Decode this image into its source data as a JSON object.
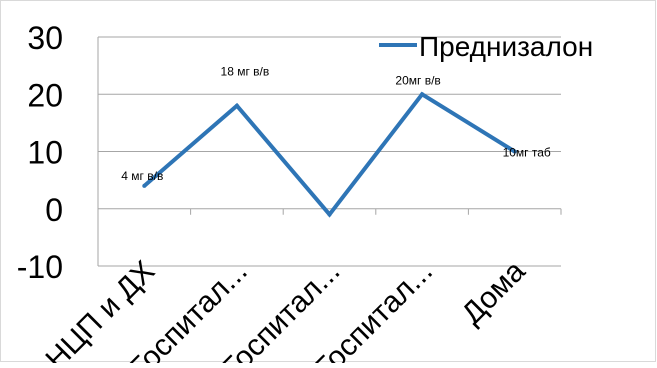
{
  "colors": {
    "series": "#2e75b6",
    "gridline": "#a6a6a6",
    "axis": "#a6a6a6",
    "text": "#000000",
    "background": "#ffffff"
  },
  "chart_data": {
    "type": "line",
    "categories": [
      "НЦП и ДХ",
      "Госпитал...",
      "Госпитал...",
      "Госпитал...",
      "Дома"
    ],
    "series": [
      {
        "name": "Преднизалон",
        "values": [
          4,
          18,
          -1,
          20,
          10
        ],
        "labels": [
          "4 мг в/в",
          "18 мг в/в",
          "",
          "20мг в/в",
          "10мг таб"
        ]
      }
    ],
    "ylim": [
      -10,
      30
    ],
    "yticks": [
      -10,
      0,
      10,
      20,
      30
    ],
    "grid": "horizontal",
    "legend": "top-right"
  }
}
